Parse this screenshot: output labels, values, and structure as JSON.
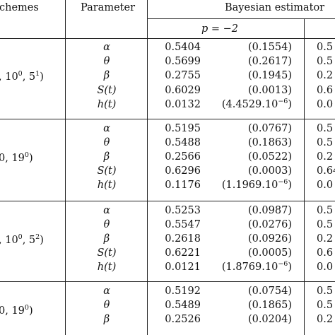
{
  "header": {
    "schemes": "chemes",
    "parameter": "Parameter",
    "estimator": "Bayesian estimator",
    "sub_p": "p = −2"
  },
  "blocks": [
    {
      "scheme_prefix": ", 10",
      "scheme_sup1": "0",
      "scheme_mid": ", 5",
      "scheme_sup2": "1",
      "scheme_suffix": ")",
      "rows": [
        {
          "param": "α",
          "est": "0.5404",
          "err": "(0.1554)",
          "next": "0.5"
        },
        {
          "param": "θ",
          "est": "0.5699",
          "err": "(0.2617)",
          "next": "0.5"
        },
        {
          "param": "β",
          "est": "0.2755",
          "err": "(0.1945)",
          "next": "0.2"
        },
        {
          "param": "S(t)",
          "est": "0.6029",
          "err": "(0.0013)",
          "next": "0.6"
        },
        {
          "param": "h(t)",
          "est": "0.0132",
          "err": "(4.4529.10",
          "err_sup": "−6",
          "err_tail": ")",
          "next": "0.0"
        }
      ]
    },
    {
      "scheme_prefix": "0, 19",
      "scheme_sup1": "0",
      "scheme_mid": ")",
      "scheme_sup2": "",
      "scheme_suffix": "",
      "rows": [
        {
          "param": "α",
          "est": "0.5195",
          "err": "(0.0767)",
          "next": "0.5"
        },
        {
          "param": "θ",
          "est": "0.5488",
          "err": "(0.1863)",
          "next": "0.5"
        },
        {
          "param": "β",
          "est": "0.2566",
          "err": "(0.0522)",
          "next": "0.2"
        },
        {
          "param": "S(t)",
          "est": "0.6296",
          "err": "(0.0003)",
          "next": "0.64"
        },
        {
          "param": "h(t)",
          "est": "0.1176",
          "err": "(1.1969.10",
          "err_sup": "−6",
          "err_tail": ")",
          "next": "0.0"
        }
      ]
    },
    {
      "scheme_prefix": ", 10",
      "scheme_sup1": "0",
      "scheme_mid": ", 5",
      "scheme_sup2": "2",
      "scheme_suffix": ")",
      "rows": [
        {
          "param": "α",
          "est": "0.5253",
          "err": "(0.0987)",
          "next": "0.5"
        },
        {
          "param": "θ",
          "est": "0.5547",
          "err": "(0.0276)",
          "next": "0.5"
        },
        {
          "param": "β",
          "est": "0.2618",
          "err": "(0.0926)",
          "next": "0.2"
        },
        {
          "param": "S(t)",
          "est": "0.6221",
          "err": "(0.0005)",
          "next": "0.6"
        },
        {
          "param": "h(t)",
          "est": "0.0121",
          "err": "(1.8769.10",
          "err_sup": "−6",
          "err_tail": ")",
          "next": "0.0"
        }
      ]
    },
    {
      "scheme_prefix": "0, 19",
      "scheme_sup1": "0",
      "scheme_mid": ")",
      "scheme_sup2": "",
      "scheme_suffix": "",
      "rows": [
        {
          "param": "α",
          "est": "0.5192",
          "err": "(0.0754)",
          "next": "0.5"
        },
        {
          "param": "θ",
          "est": "0.5489",
          "err": "(0.1865)",
          "next": "0.5"
        },
        {
          "param": "β",
          "est": "0.2526",
          "err": "(0.0204)",
          "next": "0.2"
        }
      ]
    }
  ]
}
